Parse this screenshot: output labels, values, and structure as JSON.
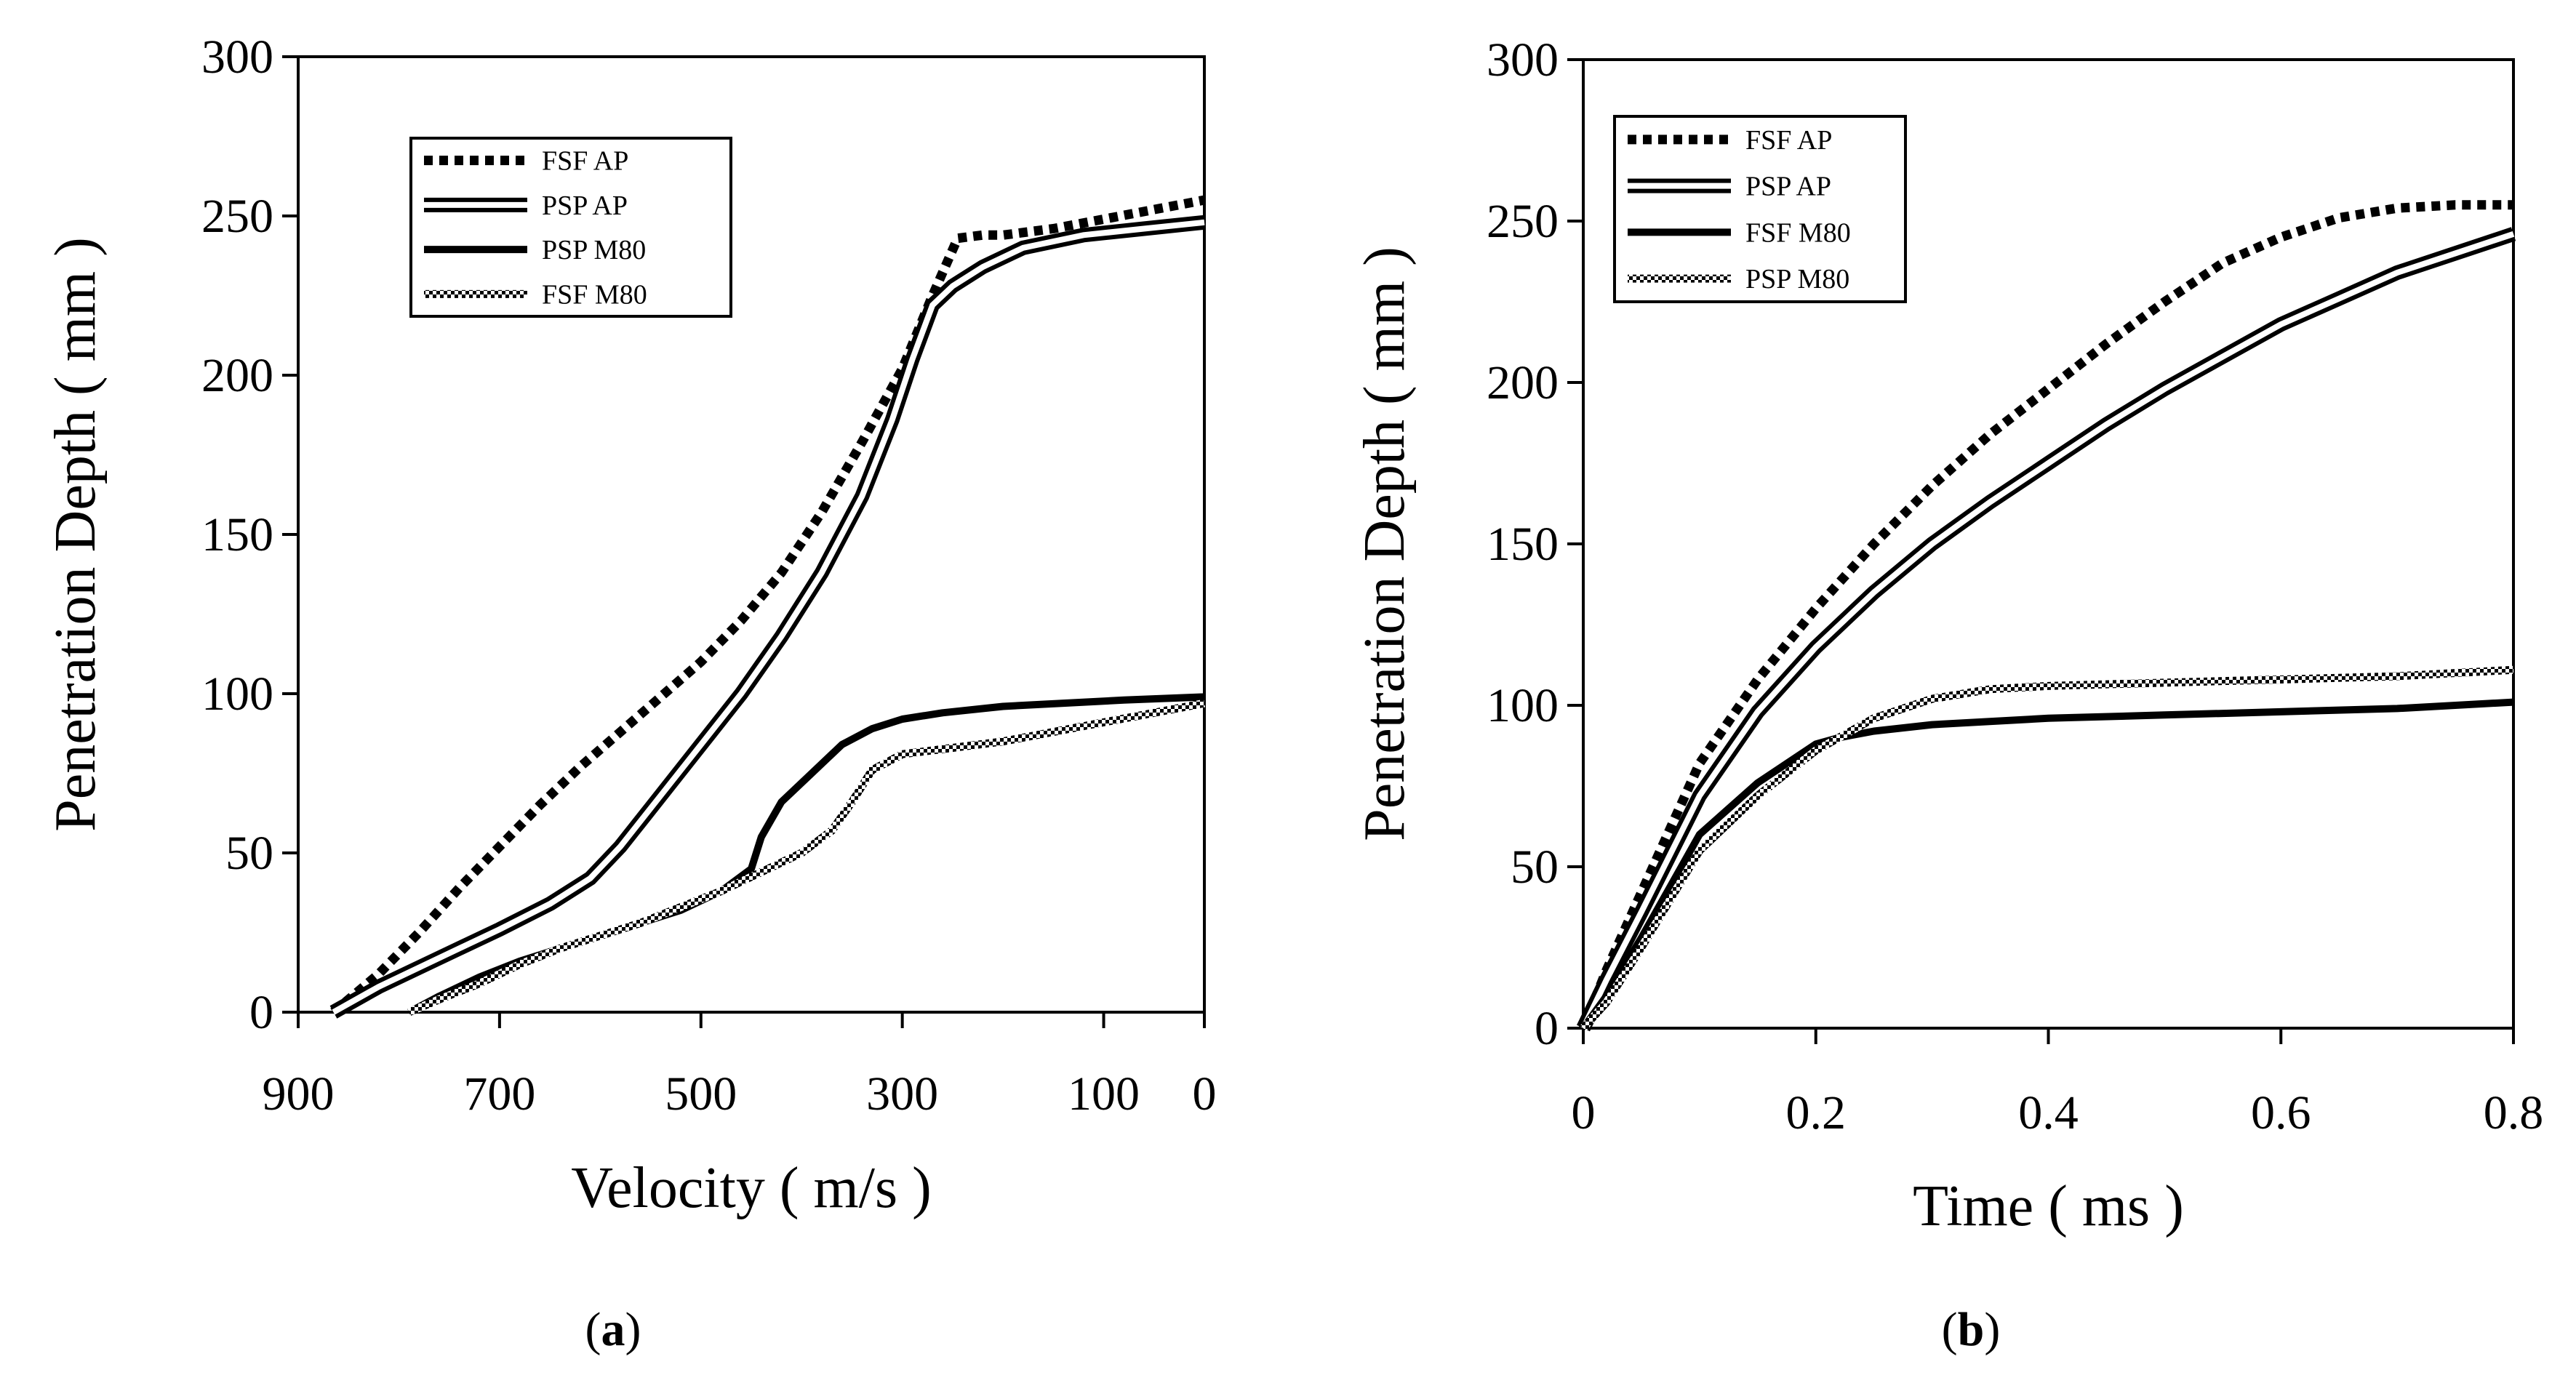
{
  "chart_data": [
    {
      "type": "line",
      "panel": "a",
      "xlabel": "Velocity ( m/s )",
      "ylabel": "Penetration Depth ( mm )",
      "xlim": [
        900,
        0
      ],
      "ylim": [
        0,
        300
      ],
      "x_reversed": true,
      "xticks": [
        900,
        700,
        500,
        300,
        100,
        0
      ],
      "yticks": [
        0,
        50,
        100,
        150,
        200,
        250,
        300
      ],
      "legend_position": "upper-left",
      "series": [
        {
          "name": "FSF AP",
          "style": "dotted-thick",
          "x": [
            865,
            820,
            780,
            740,
            700,
            660,
            620,
            580,
            540,
            500,
            460,
            420,
            380,
            340,
            300,
            270,
            245,
            220,
            200,
            150,
            100,
            50,
            0
          ],
          "y": [
            0,
            12,
            25,
            39,
            52,
            65,
            77,
            88,
            99,
            110,
            123,
            138,
            157,
            179,
            202,
            225,
            243,
            244,
            244,
            246,
            249,
            252,
            255
          ]
        },
        {
          "name": "PSP AP",
          "style": "double-line",
          "x": [
            865,
            820,
            760,
            700,
            650,
            610,
            580,
            540,
            500,
            460,
            420,
            380,
            340,
            310,
            290,
            270,
            250,
            220,
            180,
            120,
            60,
            0
          ],
          "y": [
            0,
            8,
            17,
            26,
            34,
            42,
            52,
            68,
            84,
            100,
            118,
            138,
            162,
            186,
            205,
            222,
            228,
            234,
            240,
            244,
            246,
            248
          ]
        },
        {
          "name": "PSP M80",
          "style": "solid-thick",
          "x": [
            790,
            760,
            720,
            680,
            640,
            600,
            560,
            520,
            480,
            450,
            440,
            420,
            390,
            360,
            330,
            300,
            260,
            200,
            140,
            80,
            0
          ],
          "y": [
            0,
            5,
            11,
            16,
            20,
            24,
            28,
            32,
            38,
            45,
            55,
            66,
            75,
            84,
            89,
            92,
            94,
            96,
            97,
            98,
            99
          ]
        },
        {
          "name": "FSF M80",
          "style": "stippled",
          "x": [
            790,
            760,
            720,
            680,
            640,
            600,
            560,
            520,
            480,
            440,
            400,
            370,
            350,
            330,
            300,
            250,
            200,
            150,
            100,
            50,
            0
          ],
          "y": [
            0,
            4,
            9,
            15,
            20,
            24,
            28,
            33,
            38,
            44,
            50,
            57,
            66,
            76,
            81,
            83,
            85,
            88,
            91,
            94,
            97
          ]
        }
      ]
    },
    {
      "type": "line",
      "panel": "b",
      "xlabel": "Time ( ms )",
      "ylabel": "Penetration Depth ( mm )",
      "xlim": [
        0,
        0.8
      ],
      "ylim": [
        0,
        300
      ],
      "xticks": [
        0,
        0.2,
        0.4,
        0.6,
        0.8
      ],
      "yticks": [
        0,
        50,
        100,
        150,
        200,
        250,
        300
      ],
      "legend_position": "upper-left",
      "series": [
        {
          "name": "FSF AP",
          "style": "dotted-thick",
          "x": [
            0,
            0.02,
            0.05,
            0.1,
            0.15,
            0.2,
            0.25,
            0.3,
            0.35,
            0.4,
            0.45,
            0.5,
            0.55,
            0.6,
            0.65,
            0.7,
            0.75,
            0.8
          ],
          "y": [
            0,
            18,
            42,
            82,
            108,
            130,
            150,
            168,
            184,
            198,
            212,
            225,
            237,
            245,
            251,
            254,
            255,
            255
          ]
        },
        {
          "name": "PSP AP",
          "style": "double-line",
          "x": [
            0,
            0.02,
            0.05,
            0.1,
            0.15,
            0.2,
            0.25,
            0.3,
            0.35,
            0.4,
            0.45,
            0.5,
            0.55,
            0.6,
            0.65,
            0.7,
            0.75,
            0.8
          ],
          "y": [
            0,
            15,
            36,
            72,
            98,
            118,
            135,
            150,
            163,
            175,
            187,
            198,
            208,
            218,
            226,
            234,
            240,
            246
          ]
        },
        {
          "name": "FSF M80",
          "style": "solid-thick",
          "x": [
            0,
            0.02,
            0.05,
            0.1,
            0.15,
            0.2,
            0.22,
            0.25,
            0.3,
            0.4,
            0.5,
            0.6,
            0.7,
            0.8
          ],
          "y": [
            0,
            10,
            28,
            60,
            76,
            88,
            90,
            92,
            94,
            96,
            97,
            98,
            99,
            101
          ]
        },
        {
          "name": "PSP M80",
          "style": "stippled",
          "x": [
            0,
            0.02,
            0.05,
            0.1,
            0.15,
            0.2,
            0.22,
            0.25,
            0.3,
            0.35,
            0.4,
            0.5,
            0.6,
            0.7,
            0.8
          ],
          "y": [
            0,
            8,
            25,
            55,
            72,
            86,
            90,
            96,
            102,
            105,
            106,
            107,
            108,
            109,
            111
          ]
        }
      ]
    }
  ],
  "captions": {
    "a": "a",
    "b": "b"
  }
}
